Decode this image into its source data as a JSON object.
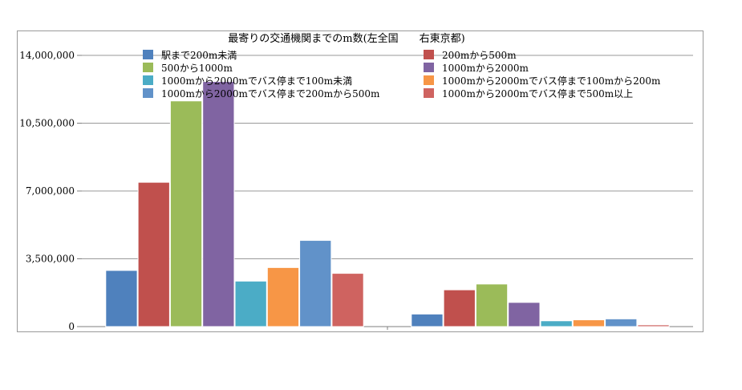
{
  "chart_data": {
    "type": "bar",
    "title": "最寄りの交通機関までのm数(左全国　　右東京都)",
    "xlabel": "",
    "ylabel": "",
    "ylim": [
      0,
      14000000
    ],
    "yticks": [
      "0",
      "3,500,000",
      "7,000,000",
      "10,500,000",
      "14,000,000"
    ],
    "ytick_values": [
      0,
      3500000,
      7000000,
      10500000,
      14000000
    ],
    "grid": true,
    "legend_position": "top",
    "categories": [
      "",
      ""
    ],
    "series": [
      {
        "name": "駅まで200m未満",
        "color": "#4F81BD",
        "values": [
          2900000,
          650000
        ]
      },
      {
        "name": "200mから500m",
        "color": "#C0504D",
        "values": [
          7450000,
          1900000
        ]
      },
      {
        "name": "500から1000m",
        "color": "#9BBB59",
        "values": [
          11650000,
          2200000
        ]
      },
      {
        "name": "1000mから2000m",
        "color": "#8064A2",
        "values": [
          12650000,
          1250000
        ]
      },
      {
        "name": "1000mから2000mでバス停まで100m未満",
        "color": "#4BACC6",
        "values": [
          2350000,
          300000
        ]
      },
      {
        "name": "1000mから2000mでバス停まで100mから200m",
        "color": "#F79646",
        "values": [
          3050000,
          350000
        ]
      },
      {
        "name": "1000mから2000mでバス停まで200mから500m",
        "color": "#6192C9",
        "values": [
          4450000,
          400000
        ]
      },
      {
        "name": "1000mから2000mでバス停まで500m以上",
        "color": "#CF6360",
        "values": [
          2750000,
          90000
        ]
      }
    ]
  }
}
